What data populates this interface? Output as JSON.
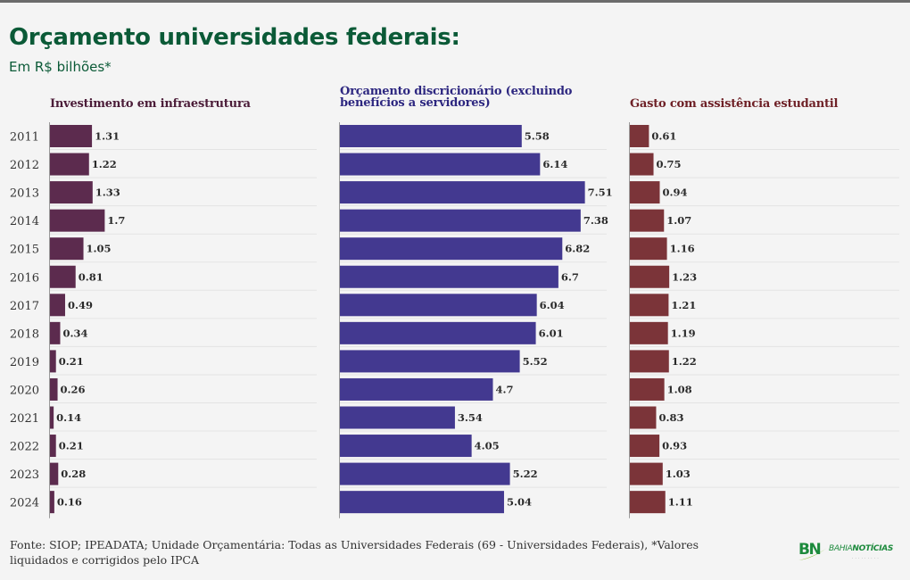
{
  "header": {
    "title": "Orçamento universidades federais:",
    "subtitle": "Em R$ bilhões*"
  },
  "chart_data": [
    {
      "type": "bar",
      "orientation": "horizontal",
      "title": "Investimento em infraestrutura",
      "color": "#5c2b4e",
      "title_color": "#4b1c38",
      "categories": [
        "2011",
        "2012",
        "2013",
        "2014",
        "2015",
        "2016",
        "2017",
        "2018",
        "2019",
        "2020",
        "2021",
        "2022",
        "2023",
        "2024"
      ],
      "values": [
        1.31,
        1.22,
        1.33,
        1.7,
        1.05,
        0.81,
        0.49,
        0.34,
        0.21,
        0.26,
        0.14,
        0.21,
        0.28,
        0.16
      ],
      "value_labels": [
        "1.31",
        "1.22",
        "1.33",
        "1.7",
        "1.05",
        "0.81",
        "0.49",
        "0.34",
        "0.21",
        "0.26",
        "0.14",
        "0.21",
        "0.28",
        "0.16"
      ],
      "xlabel": "",
      "ylabel": "",
      "grid": true
    },
    {
      "type": "bar",
      "orientation": "horizontal",
      "title": "Orçamento discricionário (excluindo benefícios a servidores)",
      "title_lines": [
        "Orçamento discricionário (excluindo",
        "benefícios a servidores)"
      ],
      "color": "#433990",
      "title_color": "#2d2780",
      "categories": [
        "2011",
        "2012",
        "2013",
        "2014",
        "2015",
        "2016",
        "2017",
        "2018",
        "2019",
        "2020",
        "2021",
        "2022",
        "2023",
        "2024"
      ],
      "values": [
        5.58,
        6.14,
        7.51,
        7.38,
        6.82,
        6.7,
        6.04,
        6.01,
        5.52,
        4.7,
        3.54,
        4.05,
        5.22,
        5.04
      ],
      "value_labels": [
        "5.58",
        "6.14",
        "7.51",
        "7.38",
        "6.82",
        "6.7",
        "6.04",
        "6.01",
        "5.52",
        "4.7",
        "3.54",
        "4.05",
        "5.22",
        "5.04"
      ],
      "xlabel": "",
      "ylabel": "",
      "grid": true
    },
    {
      "type": "bar",
      "orientation": "horizontal",
      "title": "Gasto com assistência estudantil",
      "color": "#7b3439",
      "title_color": "#6e2026",
      "categories": [
        "2011",
        "2012",
        "2013",
        "2014",
        "2015",
        "2016",
        "2017",
        "2018",
        "2019",
        "2020",
        "2021",
        "2022",
        "2023",
        "2024"
      ],
      "values": [
        0.61,
        0.75,
        0.94,
        1.07,
        1.16,
        1.23,
        1.21,
        1.19,
        1.22,
        1.08,
        0.83,
        0.93,
        1.03,
        1.11
      ],
      "value_labels": [
        "0.61",
        "0.75",
        "0.94",
        "1.07",
        "1.16",
        "1.23",
        "1.21",
        "1.19",
        "1.22",
        "1.08",
        "0.83",
        "0.93",
        "1.03",
        "1.11"
      ],
      "xlabel": "",
      "ylabel": "",
      "grid": true
    }
  ],
  "footer": {
    "source": "Fonte: SIOP; IPEADATA; Unidade Orçamentária: Todas as Universidades Federais (69 - Universidades Federais), *Valores liquidados e corrigidos pelo IPCA"
  },
  "logo": {
    "mark": "BN",
    "name_prefix": "BAHIA",
    "name_bold": "NOTÍCIAS"
  }
}
